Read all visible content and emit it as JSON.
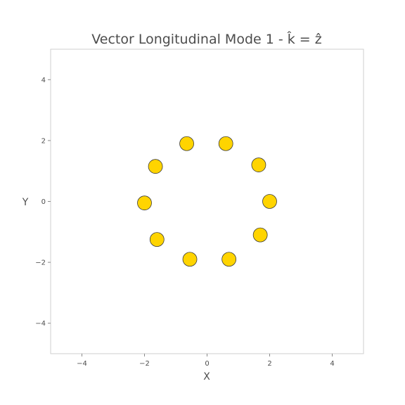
{
  "chart_data": {
    "type": "scatter",
    "title": "Vector Longitudinal Mode 1 - k̂ = ẑ",
    "xlabel": "X",
    "ylabel": "Y",
    "xlim": [
      -5,
      5
    ],
    "ylim": [
      -5,
      5
    ],
    "xticks": [
      -4,
      -2,
      0,
      2,
      4
    ],
    "yticks": [
      -4,
      -2,
      0,
      2,
      4
    ],
    "tick_labels_x": [
      "−4",
      "−2",
      "0",
      "2",
      "4"
    ],
    "tick_labels_y": [
      "−4",
      "−2",
      "0",
      "2",
      "4"
    ],
    "grid": false,
    "legend": "none",
    "marker_color": "#ffd400",
    "points": [
      {
        "x": 2.0,
        "y": 0.0
      },
      {
        "x": 1.65,
        "y": 1.2
      },
      {
        "x": 0.6,
        "y": 1.9
      },
      {
        "x": -0.65,
        "y": 1.9
      },
      {
        "x": -1.65,
        "y": 1.15
      },
      {
        "x": -2.0,
        "y": -0.05
      },
      {
        "x": -1.6,
        "y": -1.25
      },
      {
        "x": -0.55,
        "y": -1.9
      },
      {
        "x": 0.7,
        "y": -1.9
      },
      {
        "x": 1.7,
        "y": -1.1
      }
    ]
  }
}
